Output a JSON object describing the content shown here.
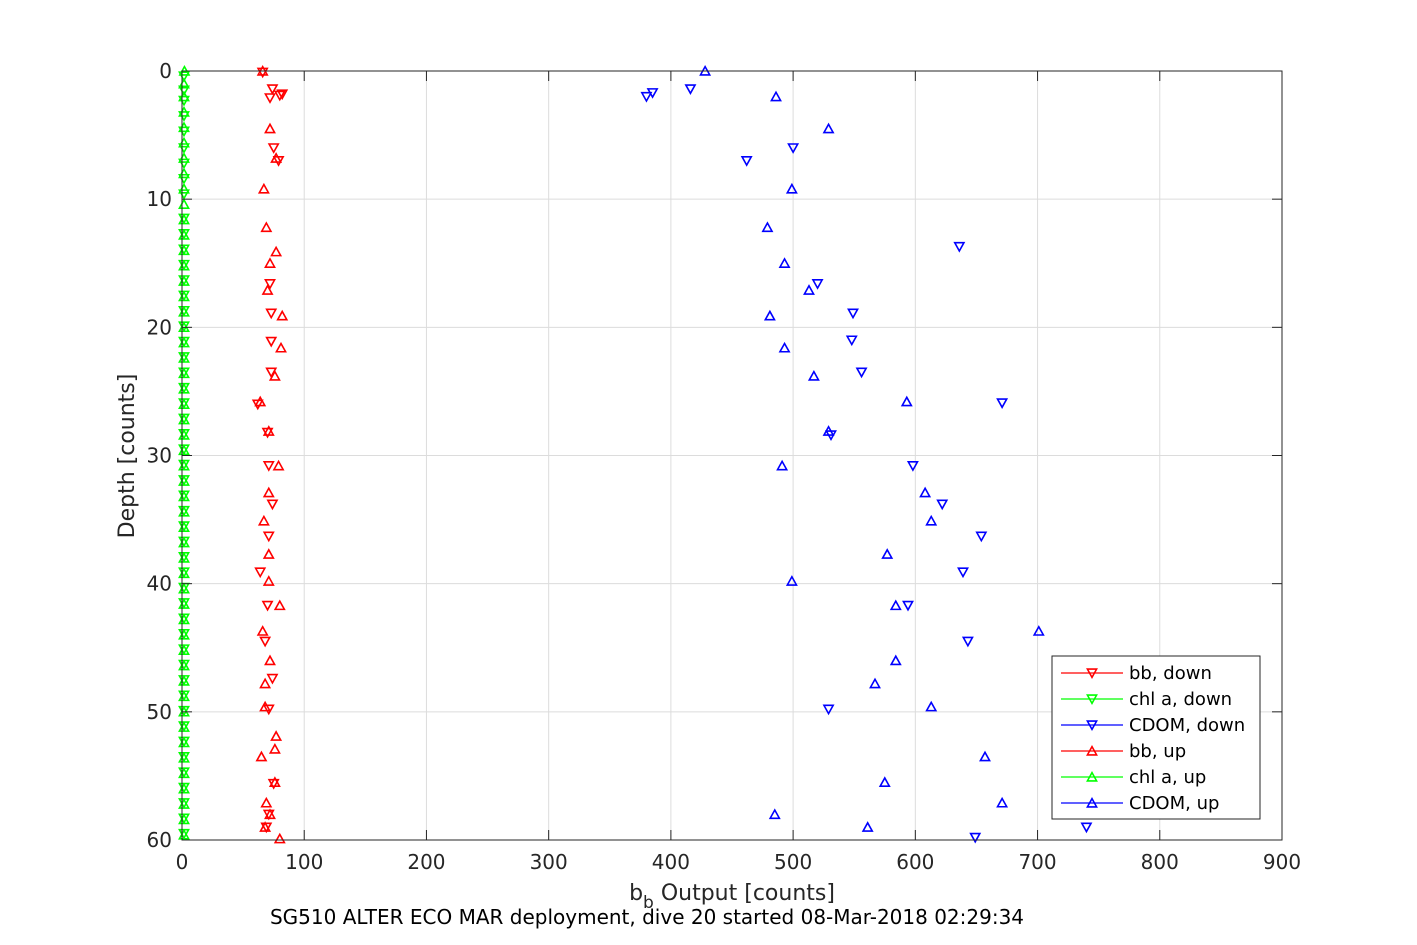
{
  "chart_data": {
    "type": "scatter",
    "caption": "SG510 ALTER ECO MAR deployment, dive 20 started 08-Mar-2018 02:29:34",
    "xlabel_main": "b",
    "xlabel_sub": "b",
    "xlabel_rest": " Output [counts]",
    "ylabel": "Depth [counts]",
    "xlim": [
      0,
      900
    ],
    "ylim": [
      0,
      60
    ],
    "y_reversed": true,
    "grid": true,
    "legend_position": "bottom-right",
    "xticks": [
      "0",
      "100",
      "200",
      "300",
      "400",
      "500",
      "600",
      "700",
      "800",
      "900"
    ],
    "yticks": [
      "0",
      "10",
      "20",
      "30",
      "40",
      "50",
      "60"
    ],
    "series": [
      {
        "name": "bb, down",
        "color": "#ff0000",
        "marker": "triangle-down",
        "points": [
          [
            66,
            0.1
          ],
          [
            74,
            1.4
          ],
          [
            82,
            1.8
          ],
          [
            80,
            1.9
          ],
          [
            72,
            2.1
          ],
          [
            75,
            6
          ],
          [
            79,
            7
          ],
          [
            72,
            16.6
          ],
          [
            73,
            18.9
          ],
          [
            73,
            21.1
          ],
          [
            73,
            23.5
          ],
          [
            62,
            26
          ],
          [
            70,
            28.2
          ],
          [
            71,
            30.8
          ],
          [
            74,
            33.8
          ],
          [
            71,
            36.3
          ],
          [
            64,
            39.1
          ],
          [
            70,
            41.7
          ],
          [
            68,
            44.5
          ],
          [
            74,
            47.4
          ],
          [
            71,
            49.8
          ],
          [
            75,
            55.6
          ],
          [
            71,
            58
          ],
          [
            69,
            59
          ]
        ]
      },
      {
        "name": "chl a, down",
        "color": "#00ff00",
        "marker": "triangle-down",
        "points": [
          [
            1,
            0.4
          ],
          [
            1,
            1.5
          ],
          [
            1,
            2.3
          ],
          [
            1,
            3.5
          ],
          [
            1,
            4.7
          ],
          [
            1,
            6
          ],
          [
            1,
            7.2
          ],
          [
            1,
            8.4
          ],
          [
            1,
            9.6
          ],
          [
            1,
            11.5
          ],
          [
            1,
            12.7
          ],
          [
            1,
            13.9
          ],
          [
            1,
            15.1
          ],
          [
            1,
            16.3
          ],
          [
            1,
            17.5
          ],
          [
            1,
            18.7
          ],
          [
            1,
            19.9
          ],
          [
            1,
            21.1
          ],
          [
            1,
            22.3
          ],
          [
            1,
            23.5
          ],
          [
            1,
            24.7
          ],
          [
            1,
            25.9
          ],
          [
            1,
            27.1
          ],
          [
            1,
            28.3
          ],
          [
            1,
            29.5
          ],
          [
            1,
            30.7
          ],
          [
            1,
            31.9
          ],
          [
            1,
            33.1
          ],
          [
            1,
            34.3
          ],
          [
            1,
            35.5
          ],
          [
            1,
            36.7
          ],
          [
            1,
            37.9
          ],
          [
            1,
            39.1
          ],
          [
            1,
            40.3
          ],
          [
            1,
            41.5
          ],
          [
            1,
            42.7
          ],
          [
            1,
            43.9
          ],
          [
            1,
            45.1
          ],
          [
            1,
            46.3
          ],
          [
            1,
            47.5
          ],
          [
            1,
            48.7
          ],
          [
            1,
            49.9
          ],
          [
            1,
            51.1
          ],
          [
            1,
            52.3
          ],
          [
            1,
            53.5
          ],
          [
            1,
            54.7
          ],
          [
            1,
            55.9
          ],
          [
            1,
            57.1
          ],
          [
            1,
            58.3
          ],
          [
            1,
            59.5
          ]
        ]
      },
      {
        "name": "CDOM, down",
        "color": "#0000ff",
        "marker": "triangle-down",
        "points": [
          [
            385,
            1.7
          ],
          [
            380,
            2
          ],
          [
            416,
            1.4
          ],
          [
            500,
            6
          ],
          [
            462,
            7
          ],
          [
            636,
            13.7
          ],
          [
            520,
            16.6
          ],
          [
            549,
            18.9
          ],
          [
            548,
            21
          ],
          [
            556,
            23.5
          ],
          [
            671,
            25.9
          ],
          [
            531,
            28.4
          ],
          [
            598,
            30.8
          ],
          [
            622,
            33.8
          ],
          [
            654,
            36.3
          ],
          [
            639,
            39.1
          ],
          [
            594,
            41.7
          ],
          [
            643,
            44.5
          ],
          [
            529,
            49.8
          ],
          [
            740,
            59
          ],
          [
            649,
            59.8
          ]
        ]
      },
      {
        "name": "bb, up",
        "color": "#ff0000",
        "marker": "triangle-up",
        "points": [
          [
            66,
            0
          ],
          [
            72,
            4.5
          ],
          [
            77,
            6.8
          ],
          [
            67,
            9.2
          ],
          [
            69,
            12.2
          ],
          [
            77,
            14.1
          ],
          [
            72,
            15
          ],
          [
            70,
            17.1
          ],
          [
            82,
            19.1
          ],
          [
            81,
            21.6
          ],
          [
            76,
            23.8
          ],
          [
            64,
            25.8
          ],
          [
            71,
            28.1
          ],
          [
            79,
            30.8
          ],
          [
            71,
            32.9
          ],
          [
            67,
            35.1
          ],
          [
            71,
            37.7
          ],
          [
            71,
            39.8
          ],
          [
            80,
            41.7
          ],
          [
            66,
            43.7
          ],
          [
            72,
            46
          ],
          [
            68,
            47.8
          ],
          [
            68,
            49.6
          ],
          [
            77,
            51.9
          ],
          [
            76,
            52.9
          ],
          [
            65,
            53.5
          ],
          [
            76,
            55.5
          ],
          [
            69,
            57.1
          ],
          [
            72,
            58
          ],
          [
            68,
            59
          ],
          [
            80,
            59.9
          ]
        ]
      },
      {
        "name": "chl a, up",
        "color": "#00ff00",
        "marker": "triangle-up",
        "points": [
          [
            2,
            0
          ],
          [
            1,
            1
          ],
          [
            1,
            2
          ],
          [
            1,
            3.2
          ],
          [
            1,
            4.4
          ],
          [
            1,
            5.6
          ],
          [
            1,
            6.8
          ],
          [
            1,
            8
          ],
          [
            1,
            9.2
          ],
          [
            1,
            10.4
          ],
          [
            1,
            11.6
          ],
          [
            1,
            12.8
          ],
          [
            1,
            14
          ],
          [
            1,
            15.2
          ],
          [
            1,
            16.4
          ],
          [
            1,
            17.6
          ],
          [
            1,
            18.8
          ],
          [
            1,
            20
          ],
          [
            1,
            21.2
          ],
          [
            1,
            22.4
          ],
          [
            1,
            23.6
          ],
          [
            1,
            24.8
          ],
          [
            1,
            26
          ],
          [
            1,
            27.2
          ],
          [
            1,
            28.4
          ],
          [
            1,
            29.6
          ],
          [
            1,
            30.8
          ],
          [
            1,
            32
          ],
          [
            1,
            33.2
          ],
          [
            1,
            34.4
          ],
          [
            1,
            35.6
          ],
          [
            1,
            36.8
          ],
          [
            1,
            38
          ],
          [
            1,
            39.2
          ],
          [
            1,
            40.4
          ],
          [
            1,
            41.6
          ],
          [
            1,
            42.8
          ],
          [
            1,
            44
          ],
          [
            1,
            45.2
          ],
          [
            1,
            46.4
          ],
          [
            1,
            47.6
          ],
          [
            1,
            48.8
          ],
          [
            1,
            50
          ],
          [
            1,
            51.2
          ],
          [
            1,
            52.4
          ],
          [
            1,
            53.6
          ],
          [
            1,
            54.8
          ],
          [
            1,
            56
          ],
          [
            1,
            57.2
          ],
          [
            1,
            58.4
          ],
          [
            1,
            59.6
          ]
        ]
      },
      {
        "name": "CDOM, up",
        "color": "#0000ff",
        "marker": "triangle-up",
        "points": [
          [
            428,
            0
          ],
          [
            486,
            2
          ],
          [
            529,
            4.5
          ],
          [
            499,
            9.2
          ],
          [
            479,
            12.2
          ],
          [
            493,
            15
          ],
          [
            513,
            17.1
          ],
          [
            481,
            19.1
          ],
          [
            493,
            21.6
          ],
          [
            517,
            23.8
          ],
          [
            593,
            25.8
          ],
          [
            529,
            28.1
          ],
          [
            491,
            30.8
          ],
          [
            608,
            32.9
          ],
          [
            613,
            35.1
          ],
          [
            577,
            37.7
          ],
          [
            499,
            39.8
          ],
          [
            584,
            41.7
          ],
          [
            701,
            43.7
          ],
          [
            584,
            46
          ],
          [
            567,
            47.8
          ],
          [
            613,
            49.6
          ],
          [
            657,
            53.5
          ],
          [
            575,
            55.5
          ],
          [
            671,
            57.1
          ],
          [
            485,
            58
          ],
          [
            561,
            59
          ]
        ]
      }
    ]
  }
}
